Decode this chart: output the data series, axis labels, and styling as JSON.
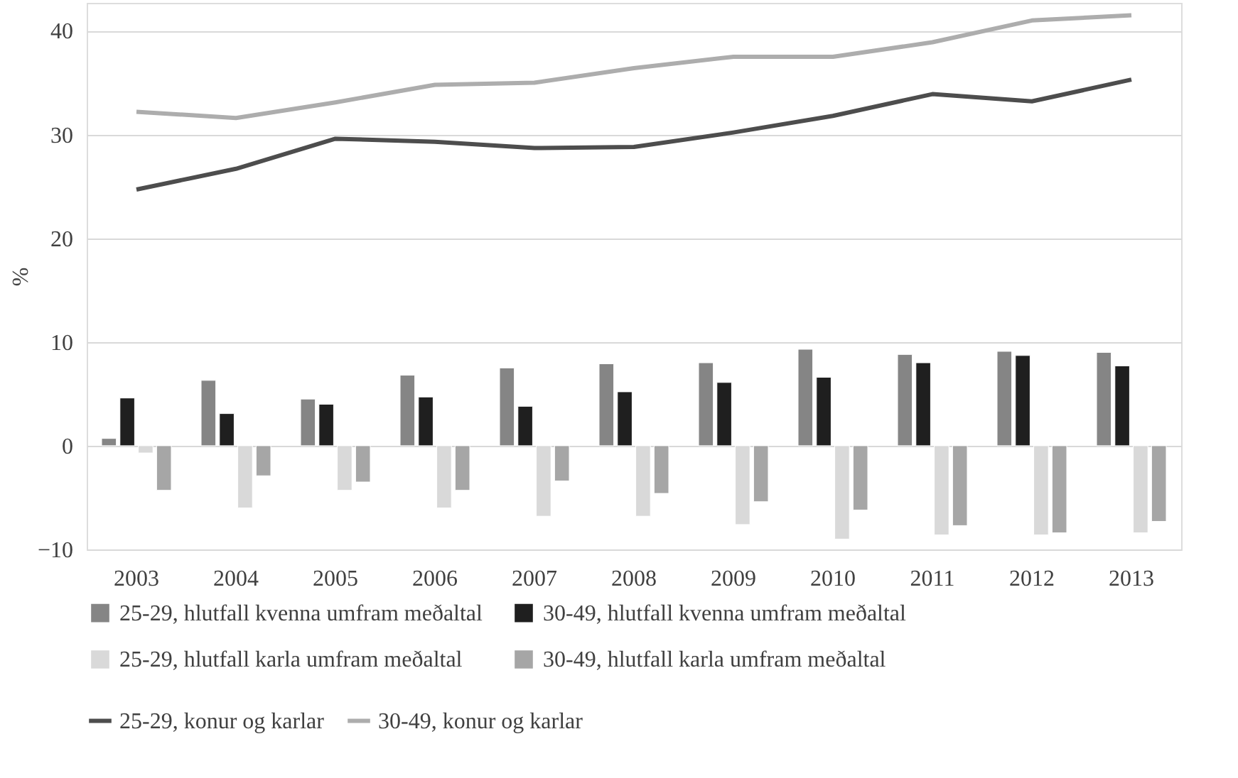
{
  "chart_data": {
    "type": "bar",
    "ylabel": "%",
    "categories": [
      "2003",
      "2004",
      "2005",
      "2006",
      "2007",
      "2008",
      "2009",
      "2010",
      "2011",
      "2012",
      "2013"
    ],
    "series": [
      {
        "name": "25-29, hlutfall  kvenna umfram meðaltal",
        "color": "#858585",
        "values": [
          0.7,
          6.3,
          4.5,
          6.8,
          7.5,
          7.9,
          8.0,
          9.3,
          8.8,
          9.1,
          9.0
        ]
      },
      {
        "name": "30-49, hlutfall  kvenna umfram meðaltal",
        "color": "#1f1f1f",
        "values": [
          4.6,
          3.1,
          4.0,
          4.7,
          3.8,
          5.2,
          6.1,
          6.6,
          8.0,
          8.7,
          7.7
        ]
      },
      {
        "name": "25-29, hlutfall  karla umfram meðaltal",
        "color": "#d9d9d9",
        "values": [
          -0.7,
          -6.0,
          -4.3,
          -6.0,
          -6.8,
          -6.8,
          -7.6,
          -9.0,
          -8.6,
          -8.6,
          -8.4
        ]
      },
      {
        "name": "30-49, hlutfall  karla umfram meðaltal",
        "color": "#a6a6a6",
        "values": [
          -4.3,
          -2.9,
          -3.5,
          -4.3,
          -3.4,
          -4.6,
          -5.4,
          -6.2,
          -7.7,
          -8.4,
          -7.3
        ]
      },
      {
        "name": "25-29, konur og karlar",
        "type": "line",
        "color": "#4d4d4d",
        "values": [
          24.7,
          26.7,
          29.6,
          29.3,
          28.7,
          28.8,
          30.2,
          31.8,
          33.9,
          33.2,
          35.3
        ]
      },
      {
        "name": "30-49, konur og karlar",
        "type": "line",
        "color": "#adadad",
        "values": [
          32.2,
          31.6,
          33.1,
          34.8,
          35.0,
          36.4,
          37.5,
          37.5,
          38.9,
          41.0,
          41.5
        ]
      }
    ],
    "ylim": [
      -10,
      42.7
    ],
    "yticks": [
      -10,
      0,
      10,
      20,
      30,
      40
    ],
    "grid": "y",
    "legend": "bottom",
    "marker": "none",
    "line_style": "solid"
  }
}
